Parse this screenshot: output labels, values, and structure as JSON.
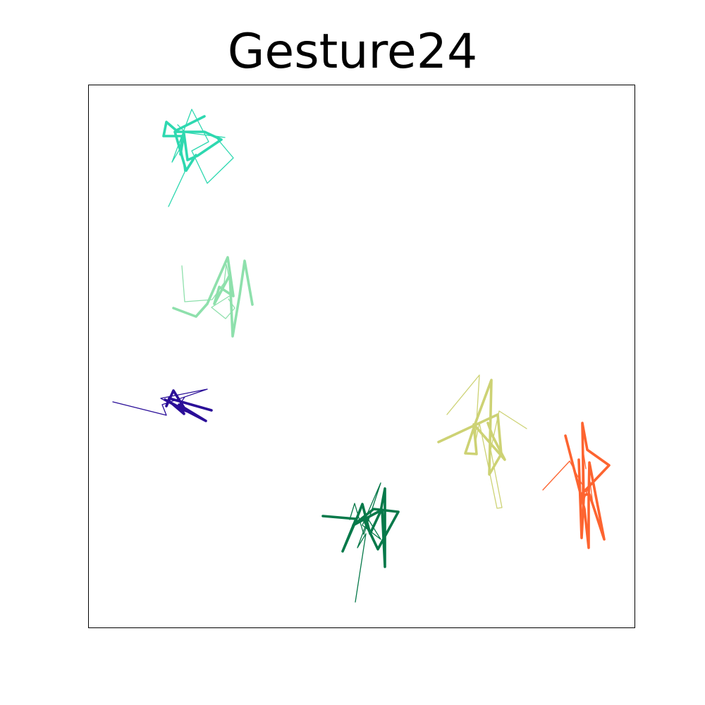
{
  "chart_data": {
    "type": "line",
    "title": "Gesture24",
    "xlabel": "",
    "ylabel": "",
    "grid": false,
    "axes_ticks": false,
    "series": [
      {
        "color": "#2ed8b0",
        "paths": [
          {
            "weight": "thin",
            "points": [
              [
                239,
                293
              ],
              [
                262,
                244
              ],
              [
                257,
                208
              ],
              [
                244,
                230
              ],
              [
                272,
                155
              ],
              [
                296,
                201
              ],
              [
                272,
                214
              ],
              [
                294,
                260
              ],
              [
                331,
                224
              ],
              [
                305,
                193
              ],
              [
                319,
                195
              ],
              [
                263,
                188
              ],
              [
                252,
                177
              ]
            ]
          },
          {
            "weight": "thick",
            "points": [
              [
                290,
                165
              ],
              [
                250,
                185
              ],
              [
                236,
                173
              ],
              [
                232,
                193
              ],
              [
                258,
                193
              ],
              [
                256,
                219
              ],
              [
                261,
                190
              ],
              [
                266,
                227
              ],
              [
                280,
                221
              ],
              [
                314,
                198
              ],
              [
                290,
                187
              ],
              [
                248,
                187
              ],
              [
                264,
                242
              ],
              [
                278,
                220
              ]
            ]
          }
        ]
      },
      {
        "color": "#8ee0ac",
        "paths": [
          {
            "weight": "thin",
            "points": [
              [
                258,
                377
              ],
              [
                262,
                428
              ],
              [
                301,
                425
              ],
              [
                318,
                401
              ],
              [
                321,
                375
              ],
              [
                330,
                417
              ],
              [
                300,
                436
              ],
              [
                320,
                452
              ],
              [
                333,
                437
              ],
              [
                324,
                424
              ]
            ]
          },
          {
            "weight": "thick",
            "points": [
              [
                246,
                437
              ],
              [
                278,
                449
              ],
              [
                294,
                431
              ],
              [
                323,
                365
              ],
              [
                331,
                420
              ],
              [
                311,
                407
              ],
              [
                304,
                431
              ],
              [
                326,
                390
              ],
              [
                330,
                477
              ],
              [
                340,
                418
              ],
              [
                347,
                370
              ],
              [
                358,
                432
              ]
            ]
          }
        ]
      },
      {
        "color": "#2a0e98",
        "paths": [
          {
            "weight": "thin",
            "points": [
              [
                160,
                570
              ],
              [
                236,
                589
              ],
              [
                230,
                574
              ],
              [
                294,
                552
              ],
              [
                228,
                565
              ],
              [
                252,
                578
              ],
              [
                262,
                563
              ]
            ]
          },
          {
            "weight": "thick",
            "points": [
              [
                300,
                582
              ],
              [
                240,
                565
              ],
              [
                236,
                576
              ],
              [
                246,
                554
              ],
              [
                264,
                583
              ],
              [
                234,
                567
              ],
              [
                292,
                597
              ],
              [
                254,
                574
              ],
              [
                261,
                587
              ],
              [
                240,
                569
              ]
            ]
          }
        ]
      },
      {
        "color": "#07794a",
        "paths": [
          {
            "weight": "thin",
            "points": [
              [
                504,
                854
              ],
              [
                519,
                757
              ],
              [
                507,
                777
              ],
              [
                522,
                736
              ],
              [
                540,
                765
              ],
              [
                514,
                745
              ],
              [
                540,
                685
              ],
              [
                516,
                758
              ],
              [
                503,
                714
              ],
              [
                496,
                737
              ]
            ]
          },
          {
            "weight": "thick",
            "points": [
              [
                458,
                732
              ],
              [
                505,
                736
              ],
              [
                486,
                782
              ],
              [
                505,
                738
              ],
              [
                514,
                715
              ],
              [
                525,
                757
              ],
              [
                540,
                725
              ],
              [
                546,
                693
              ],
              [
                546,
                804
              ],
              [
                542,
                723
              ],
              [
                501,
                745
              ],
              [
                530,
                722
              ],
              [
                565,
                726
              ],
              [
                536,
                779
              ],
              [
                516,
                737
              ]
            ]
          }
        ]
      },
      {
        "color": "#cdd274",
        "paths": [
          {
            "weight": "thin",
            "points": [
              [
                634,
                588
              ],
              [
                680,
                532
              ],
              [
                674,
                629
              ],
              [
                680,
                600
              ],
              [
                705,
                721
              ],
              [
                712,
                720
              ],
              [
                696,
                638
              ],
              [
                708,
                583
              ],
              [
                747,
                608
              ]
            ]
          },
          {
            "weight": "thick",
            "points": [
              [
                622,
                627
              ],
              [
                706,
                588
              ],
              [
                711,
                644
              ],
              [
                694,
                673
              ],
              [
                697,
                539
              ],
              [
                674,
                601
              ],
              [
                660,
                643
              ],
              [
                676,
                644
              ],
              [
                672,
                602
              ],
              [
                716,
                652
              ],
              [
                699,
                619
              ],
              [
                692,
                600
              ]
            ]
          }
        ]
      },
      {
        "color": "#fd6430",
        "paths": [
          {
            "weight": "thin",
            "points": [
              [
                770,
                695
              ],
              [
                808,
                654
              ],
              [
                841,
                716
              ],
              [
                837,
                683
              ],
              [
                826,
                716
              ],
              [
                826,
                632
              ],
              [
                831,
                665
              ]
            ]
          },
          {
            "weight": "thick",
            "points": [
              [
                802,
                618
              ],
              [
                829,
                722
              ],
              [
                835,
                777
              ],
              [
                835,
                707
              ],
              [
                836,
                656
              ],
              [
                857,
                765
              ],
              [
                836,
                701
              ],
              [
                823,
                703
              ],
              [
                864,
                660
              ],
              [
                833,
                638
              ],
              [
                826,
                600
              ],
              [
                828,
                708
              ],
              [
                825,
                763
              ],
              [
                821,
                652
              ]
            ]
          }
        ]
      }
    ]
  }
}
